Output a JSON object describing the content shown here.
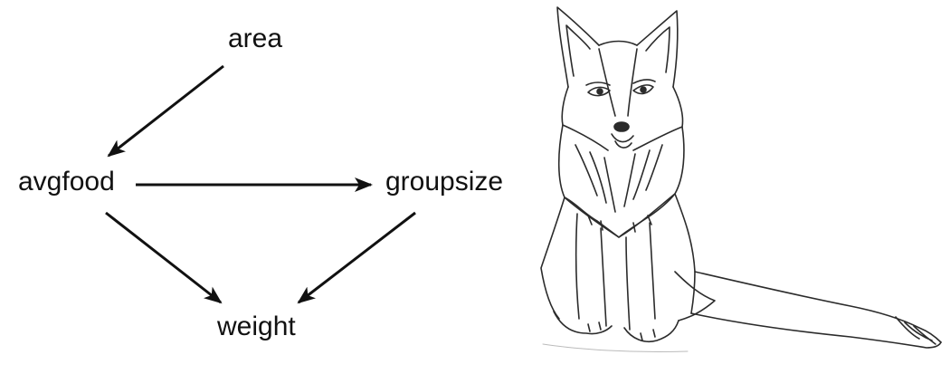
{
  "dag": {
    "nodes": [
      {
        "id": "area",
        "label": "area"
      },
      {
        "id": "avgfood",
        "label": "avgfood"
      },
      {
        "id": "groupsize",
        "label": "groupsize"
      },
      {
        "id": "weight",
        "label": "weight"
      }
    ],
    "edges": [
      {
        "from": "area",
        "to": "avgfood"
      },
      {
        "from": "avgfood",
        "to": "groupsize"
      },
      {
        "from": "avgfood",
        "to": "weight"
      },
      {
        "from": "groupsize",
        "to": "weight"
      }
    ]
  },
  "illustration": {
    "subject": "fox-sketch",
    "style": "pencil line drawing"
  },
  "colors": {
    "ink": "#111111",
    "pencil": "#2b2b2b",
    "background": "#ffffff"
  }
}
